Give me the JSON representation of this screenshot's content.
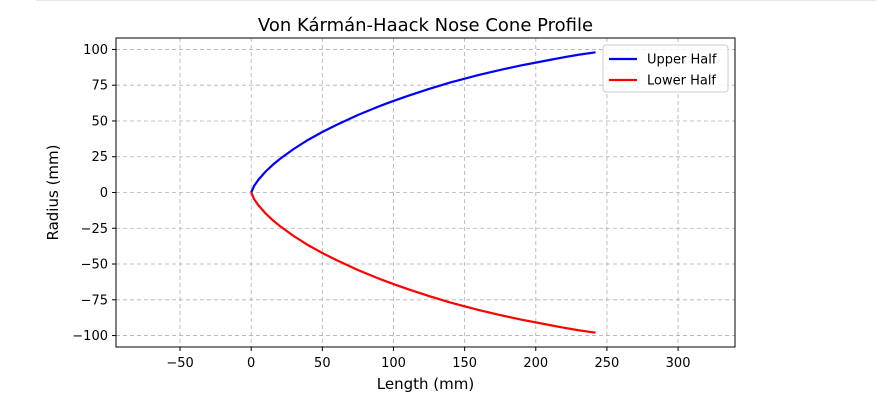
{
  "chart_data": {
    "type": "line",
    "title": "Von Kármán-Haack Nose Cone Profile",
    "xlabel": "Length (mm)",
    "ylabel": "Radius (mm)",
    "xlim": [
      -95,
      340
    ],
    "ylim": [
      -108,
      108
    ],
    "xticks": [
      -50,
      0,
      50,
      100,
      150,
      200,
      250,
      300
    ],
    "yticks": [
      100,
      75,
      50,
      25,
      0,
      -25,
      -50,
      -75,
      -100
    ],
    "xtick_labels": [
      "−50",
      "0",
      "50",
      "100",
      "150",
      "200",
      "250",
      "300"
    ],
    "ytick_labels": [
      "100",
      "75",
      "50",
      "25",
      "0",
      "−25",
      "−50",
      "−75",
      "−100"
    ],
    "grid": true,
    "legend_position": "top-right",
    "series": [
      {
        "name": "Upper Half",
        "color": "#0000ff",
        "x": [
          0,
          2,
          5,
          10,
          15,
          20,
          30,
          40,
          50,
          60,
          75,
          90,
          100,
          110,
          125,
          140,
          150,
          160,
          175,
          190,
          200,
          210,
          220,
          230,
          242
        ],
        "y": [
          0,
          4.5,
          8.8,
          14.5,
          19.2,
          23.3,
          30.5,
          36.8,
          42.3,
          47.3,
          54.2,
          60.3,
          64.0,
          67.5,
          72.4,
          76.9,
          79.6,
          82.2,
          85.7,
          88.9,
          90.8,
          92.7,
          94.6,
          96.3,
          98.0
        ]
      },
      {
        "name": "Lower Half",
        "color": "#ff0000",
        "x": [
          0,
          2,
          5,
          10,
          15,
          20,
          30,
          40,
          50,
          60,
          75,
          90,
          100,
          110,
          125,
          140,
          150,
          160,
          175,
          190,
          200,
          210,
          220,
          230,
          242
        ],
        "y": [
          0,
          -4.5,
          -8.8,
          -14.5,
          -19.2,
          -23.3,
          -30.5,
          -36.8,
          -42.3,
          -47.3,
          -54.2,
          -60.3,
          -64.0,
          -67.5,
          -72.4,
          -76.9,
          -79.6,
          -82.2,
          -85.7,
          -88.9,
          -90.8,
          -92.7,
          -94.6,
          -96.3,
          -98.0
        ]
      }
    ]
  }
}
